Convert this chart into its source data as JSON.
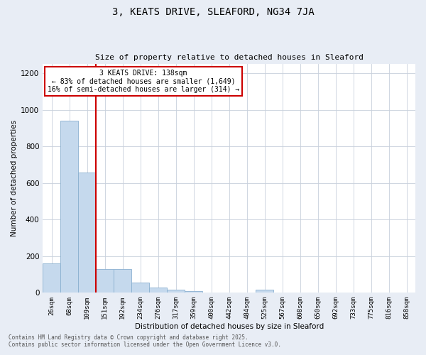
{
  "title": "3, KEATS DRIVE, SLEAFORD, NG34 7JA",
  "subtitle": "Size of property relative to detached houses in Sleaford",
  "xlabel": "Distribution of detached houses by size in Sleaford",
  "ylabel": "Number of detached properties",
  "categories": [
    "26sqm",
    "68sqm",
    "109sqm",
    "151sqm",
    "192sqm",
    "234sqm",
    "276sqm",
    "317sqm",
    "359sqm",
    "400sqm",
    "442sqm",
    "484sqm",
    "525sqm",
    "567sqm",
    "608sqm",
    "650sqm",
    "692sqm",
    "733sqm",
    "775sqm",
    "816sqm",
    "858sqm"
  ],
  "values": [
    160,
    940,
    655,
    130,
    130,
    55,
    30,
    15,
    10,
    0,
    0,
    0,
    15,
    0,
    0,
    0,
    0,
    0,
    0,
    0,
    0
  ],
  "bar_color": "#c5d9ed",
  "bar_edge_color": "#8ab0d0",
  "vline_x": 2.5,
  "vline_color": "#cc0000",
  "annotation_title": "3 KEATS DRIVE: 138sqm",
  "annotation_line1": "← 83% of detached houses are smaller (1,649)",
  "annotation_line2": "16% of semi-detached houses are larger (314) →",
  "annotation_box_color": "#cc0000",
  "ylim": [
    0,
    1250
  ],
  "yticks": [
    0,
    200,
    400,
    600,
    800,
    1000,
    1200
  ],
  "footer1": "Contains HM Land Registry data © Crown copyright and database right 2025.",
  "footer2": "Contains public sector information licensed under the Open Government Licence v3.0.",
  "bg_color": "#e8edf5",
  "plot_bg_color": "#ffffff",
  "grid_color": "#c8d0dc"
}
